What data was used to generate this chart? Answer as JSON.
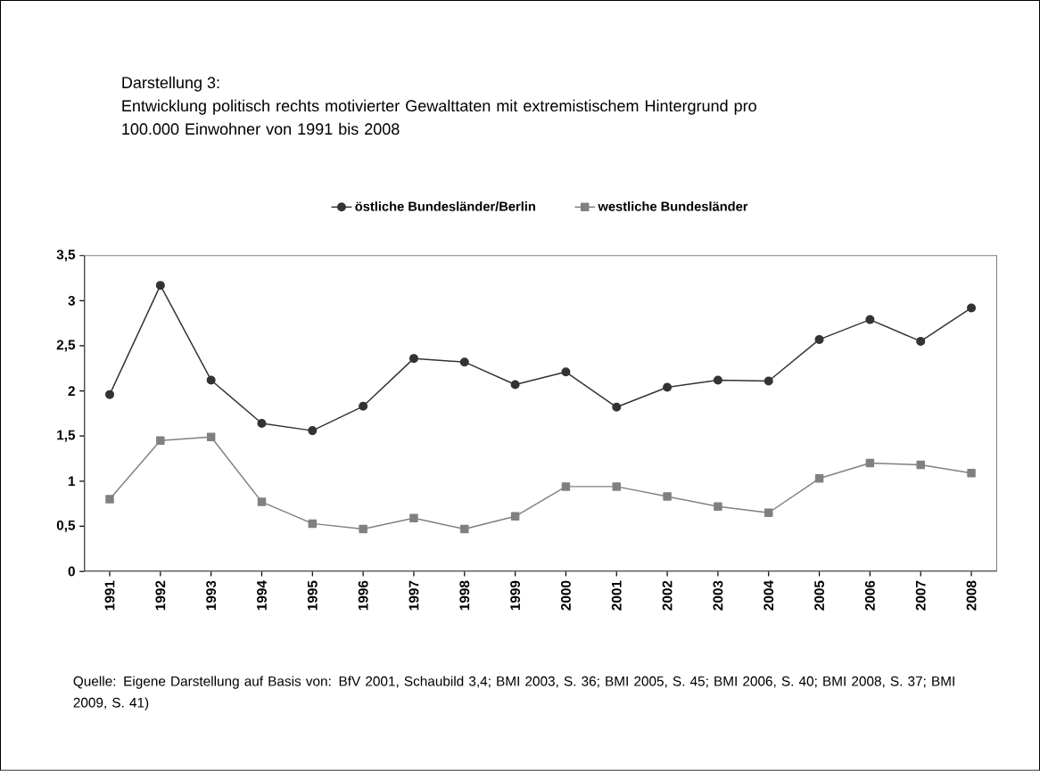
{
  "chart_data": {
    "type": "line",
    "title": "Darstellung 3:",
    "subtitle": "Entwicklung politisch rechts motivierter Gewalttaten mit extremistischem Hintergrund pro 100.000 Einwohner von 1991 bis 2008",
    "categories": [
      "1991",
      "1992",
      "1993",
      "1994",
      "1995",
      "1996",
      "1997",
      "1998",
      "1999",
      "2000",
      "2001",
      "2002",
      "2003",
      "2004",
      "2005",
      "2006",
      "2007",
      "2008"
    ],
    "series": [
      {
        "name": "östliche Bundesländer/Berlin",
        "color": "#333333",
        "marker": "circle",
        "values": [
          1.96,
          3.17,
          2.12,
          1.64,
          1.56,
          1.83,
          2.36,
          2.32,
          2.07,
          2.21,
          1.82,
          2.04,
          2.12,
          2.11,
          2.57,
          2.79,
          2.55,
          2.92
        ]
      },
      {
        "name": "westliche Bundesländer",
        "color": "#808080",
        "marker": "square",
        "values": [
          0.8,
          1.45,
          1.49,
          0.77,
          0.53,
          0.47,
          0.59,
          0.47,
          0.61,
          0.94,
          0.94,
          0.83,
          0.72,
          0.65,
          1.03,
          1.2,
          1.18,
          1.09
        ]
      }
    ],
    "ylim": [
      0,
      3.5
    ],
    "yticks": [
      0,
      {
        "value": 0.5,
        "label": "0,5"
      },
      1,
      {
        "value": 1.5,
        "label": "1,5"
      },
      2,
      {
        "value": 2.5,
        "label": "2,5"
      },
      3,
      {
        "value": 3.5,
        "label": "3,5"
      }
    ],
    "legend": "top",
    "grid": false,
    "annotations": [
      "Quelle: Eigene Darstellung auf Basis von: BfV 2001, Schaubild 3,4; BMI 2003, S. 36; BMI 2005, S. 45; BMI 2006, S. 40; BMI 2008, S. 37; BMI 2009, S. 41)"
    ]
  }
}
